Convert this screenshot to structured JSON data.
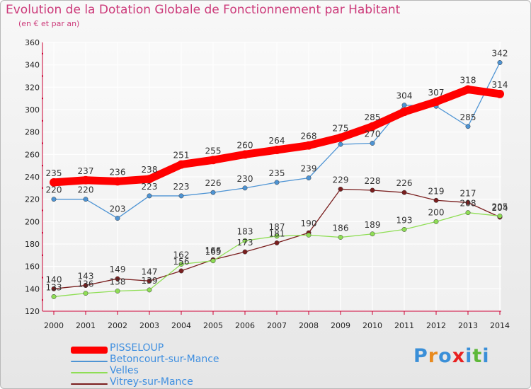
{
  "title": "Evolution de la Dotation Globale de Fonctionnement par Habitant",
  "subtitle": "(en € et par an)",
  "colors": {
    "title": "#cc3a7a",
    "legend_text": "#3f8fe0",
    "axis_text": "#222222"
  },
  "logo": {
    "text": "Proxiti",
    "colors": [
      "#3a8fd8",
      "#e88a1e",
      "#3a8fd8",
      "#e82020",
      "#3a8fd8",
      "#5fb83a",
      "#3a8fd8"
    ]
  },
  "chart_data": {
    "type": "line",
    "title": "Evolution de la Dotation Globale de Fonctionnement par Habitant",
    "subtitle": "(en € et par an)",
    "x": [
      "2000",
      "2001",
      "2002",
      "2003",
      "2004",
      "2005",
      "2006",
      "2007",
      "2008",
      "2009",
      "2010",
      "2011",
      "2012",
      "2013",
      "2014"
    ],
    "ylim": [
      120,
      360
    ],
    "yticks": [
      120,
      140,
      160,
      180,
      200,
      220,
      240,
      260,
      280,
      300,
      320,
      340,
      360
    ],
    "grid": true,
    "legend_position": "bottom-left",
    "series": [
      {
        "name": "PISSELOUP",
        "color": "#ff0000",
        "emphasis": true,
        "values": [
          235,
          237,
          236,
          238,
          251,
          255,
          260,
          264,
          268,
          275,
          285,
          298,
          307,
          318,
          314
        ],
        "labels": [
          "235",
          "237",
          "236",
          "238",
          "251",
          "255",
          "260",
          "264",
          "268",
          "275",
          "285",
          "",
          "307",
          "318",
          "314"
        ]
      },
      {
        "name": "Betoncourt-sur-Mance",
        "color": "#4e94d4",
        "emphasis": false,
        "values": [
          220,
          220,
          203,
          223,
          223,
          226,
          230,
          235,
          239,
          269,
          270,
          304,
          303,
          285,
          342
        ],
        "labels": [
          "220",
          "220",
          "203",
          "223",
          "223",
          "226",
          "230",
          "235",
          "239",
          "",
          "270",
          "304",
          "",
          "285",
          "342"
        ]
      },
      {
        "name": "Velles",
        "color": "#8fde55",
        "emphasis": false,
        "values": [
          133,
          136,
          138,
          139,
          162,
          165,
          183,
          187,
          188,
          186,
          189,
          193,
          200,
          208,
          205
        ],
        "labels": [
          "133",
          "136",
          "138",
          "139",
          "162",
          "165",
          "183",
          "187",
          "",
          "186",
          "189",
          "193",
          "200",
          "208",
          "205"
        ]
      },
      {
        "name": "Vitrey-sur-Mance",
        "color": "#7a1f1f",
        "emphasis": false,
        "values": [
          140,
          143,
          149,
          147,
          156,
          166,
          173,
          181,
          190,
          229,
          228,
          226,
          219,
          217,
          204
        ],
        "labels": [
          "140",
          "143",
          "149",
          "147",
          "156",
          "166",
          "173",
          "181",
          "190",
          "229",
          "228",
          "226",
          "219",
          "217",
          "204"
        ]
      }
    ]
  }
}
